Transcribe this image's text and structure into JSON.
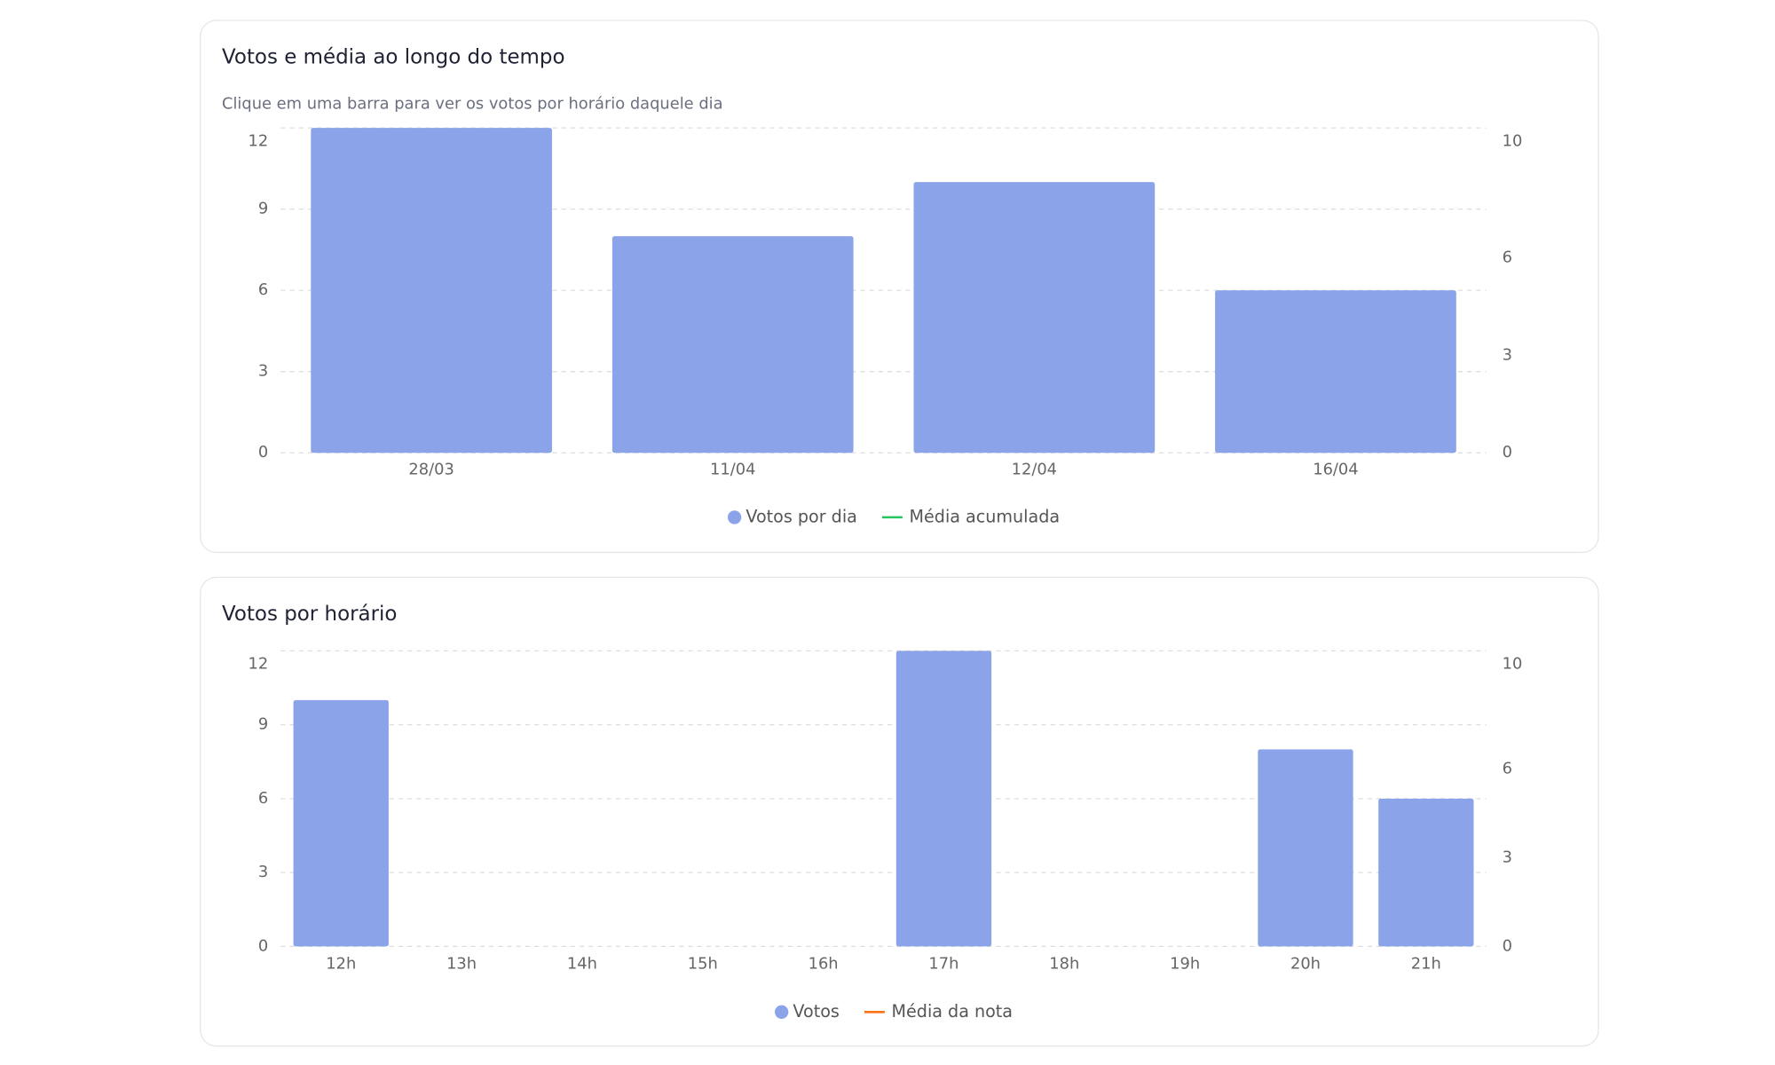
{
  "chart_data": [
    {
      "type": "bar",
      "title": "Votos e média ao longo do tempo",
      "subtitle": "Clique em uma barra para ver os votos por horário daquele dia",
      "categories": [
        "28/03",
        "11/04",
        "12/04",
        "16/04"
      ],
      "series": [
        {
          "name": "Votos por dia",
          "color": "#8ba3e8",
          "values": [
            12,
            8,
            10,
            6
          ]
        },
        {
          "name": "Média acumulada",
          "color": "#22c55e",
          "axis": "y2",
          "values": [
            null,
            null,
            null,
            null
          ]
        }
      ],
      "ylim": [
        0,
        12
      ],
      "yticks": [
        0,
        3,
        6,
        9,
        12
      ],
      "y2lim": [
        0,
        10
      ],
      "y2ticks": [
        0,
        3,
        6,
        10
      ],
      "grid": true,
      "legend": "bottom"
    },
    {
      "type": "bar",
      "title": "Votos por horário",
      "categories": [
        "12h",
        "13h",
        "14h",
        "15h",
        "16h",
        "17h",
        "18h",
        "19h",
        "20h",
        "21h"
      ],
      "series": [
        {
          "name": "Votos",
          "color": "#8ba3e8",
          "values": [
            10,
            0,
            0,
            0,
            0,
            12,
            0,
            0,
            8,
            6
          ]
        },
        {
          "name": "Média da nota",
          "color": "#f97316",
          "axis": "y2",
          "values": [
            null,
            null,
            null,
            null,
            null,
            null,
            null,
            null,
            null,
            null
          ]
        }
      ],
      "ylim": [
        0,
        12
      ],
      "yticks": [
        0,
        3,
        6,
        9,
        12
      ],
      "y2lim": [
        0,
        10
      ],
      "y2ticks": [
        0,
        3,
        6,
        10
      ],
      "grid": true,
      "legend": "bottom"
    }
  ]
}
